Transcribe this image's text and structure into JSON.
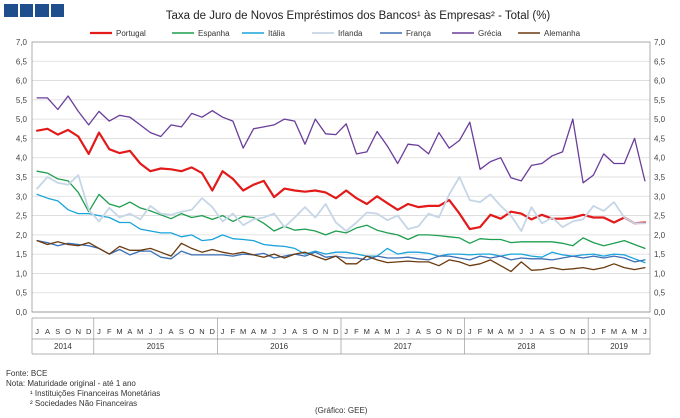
{
  "logo": {
    "alt": "logo-blocks"
  },
  "chart_data": {
    "type": "line",
    "title": "Taxa de Juro de Novos Empréstimos dos Bancos¹ às Empresas² - Total (%)",
    "ylim": [
      0,
      7
    ],
    "yticks": [
      "0,0",
      "0,5",
      "1,0",
      "1,5",
      "2,0",
      "2,5",
      "3,0",
      "3,5",
      "4,0",
      "4,5",
      "5,0",
      "5,5",
      "6,0",
      "6,5",
      "7,0"
    ],
    "months": [
      "J",
      "A",
      "S",
      "O",
      "N",
      "D",
      "J",
      "F",
      "M",
      "A",
      "M",
      "J",
      "J",
      "A",
      "S",
      "O",
      "N",
      "D",
      "J",
      "F",
      "M",
      "A",
      "M",
      "J",
      "J",
      "A",
      "S",
      "O",
      "N",
      "D",
      "J",
      "F",
      "M",
      "A",
      "M",
      "J",
      "J",
      "A",
      "S",
      "O",
      "N",
      "D",
      "J",
      "F",
      "M",
      "A",
      "M",
      "J",
      "J",
      "A",
      "S",
      "O",
      "N",
      "D",
      "J",
      "F",
      "M",
      "A",
      "M",
      "J"
    ],
    "years": [
      {
        "label": "2014",
        "start": 0,
        "end": 5
      },
      {
        "label": "2015",
        "start": 6,
        "end": 17
      },
      {
        "label": "2016",
        "start": 18,
        "end": 29
      },
      {
        "label": "2017",
        "start": 30,
        "end": 41
      },
      {
        "label": "2018",
        "start": 42,
        "end": 53
      },
      {
        "label": "2019",
        "start": 54,
        "end": 59
      }
    ],
    "series": [
      {
        "name": "Portugal",
        "color": "#e21a1a",
        "width": 2.2,
        "values": [
          4.7,
          4.75,
          4.6,
          4.72,
          4.55,
          4.1,
          4.65,
          4.22,
          4.12,
          4.18,
          3.85,
          3.65,
          3.72,
          3.7,
          3.65,
          3.75,
          3.6,
          3.15,
          3.65,
          3.45,
          3.15,
          3.3,
          3.4,
          2.98,
          3.2,
          3.15,
          3.12,
          3.15,
          3.1,
          2.95,
          3.15,
          2.95,
          2.8,
          3.0,
          2.82,
          2.65,
          2.8,
          2.72,
          2.75,
          2.75,
          2.9,
          2.55,
          2.15,
          2.2,
          2.52,
          2.42,
          2.6,
          2.55,
          2.4,
          2.52,
          2.42,
          2.42,
          2.45,
          2.52,
          2.45,
          2.45,
          2.32,
          2.45,
          2.3,
          2.32
        ]
      },
      {
        "name": "Espanha",
        "color": "#1e9e4e",
        "width": 1.3,
        "values": [
          3.65,
          3.6,
          3.45,
          3.4,
          3.1,
          2.6,
          3.05,
          2.8,
          2.72,
          2.85,
          2.7,
          2.62,
          2.52,
          2.42,
          2.55,
          2.45,
          2.5,
          2.4,
          2.5,
          2.35,
          2.48,
          2.45,
          2.3,
          2.1,
          2.22,
          2.12,
          2.15,
          2.1,
          2.0,
          2.1,
          2.05,
          2.18,
          2.25,
          2.12,
          2.05,
          2.0,
          1.88,
          2.0,
          2.0,
          1.98,
          1.95,
          1.92,
          1.78,
          1.9,
          1.88,
          1.88,
          1.8,
          1.82,
          1.82,
          1.82,
          1.82,
          1.78,
          1.72,
          1.92,
          1.8,
          1.72,
          1.78,
          1.85,
          1.75,
          1.65
        ]
      },
      {
        "name": "Itália",
        "color": "#1aa3dc",
        "width": 1.3,
        "values": [
          3.05,
          2.95,
          2.88,
          2.65,
          2.55,
          2.55,
          2.5,
          2.45,
          2.32,
          2.32,
          2.15,
          2.1,
          2.05,
          2.05,
          1.95,
          2.0,
          1.85,
          1.88,
          2.0,
          1.9,
          1.88,
          1.85,
          1.75,
          1.72,
          1.7,
          1.65,
          1.5,
          1.58,
          1.5,
          1.55,
          1.55,
          1.5,
          1.45,
          1.45,
          1.65,
          1.5,
          1.55,
          1.55,
          1.52,
          1.45,
          1.5,
          1.5,
          1.48,
          1.5,
          1.5,
          1.45,
          1.5,
          1.5,
          1.45,
          1.42,
          1.55,
          1.48,
          1.45,
          1.48,
          1.5,
          1.45,
          1.5,
          1.48,
          1.38,
          1.28
        ]
      },
      {
        "name": "Irlanda",
        "color": "#c6d6e6",
        "width": 1.8,
        "values": [
          3.2,
          3.5,
          3.35,
          3.3,
          3.55,
          2.65,
          2.35,
          2.7,
          2.45,
          2.55,
          2.4,
          2.75,
          2.55,
          2.52,
          2.6,
          2.65,
          2.95,
          2.72,
          2.35,
          2.55,
          2.25,
          2.4,
          2.45,
          2.55,
          2.2,
          2.45,
          2.72,
          2.45,
          2.8,
          2.32,
          2.1,
          2.32,
          2.58,
          2.55,
          2.38,
          2.5,
          2.15,
          2.22,
          2.55,
          2.45,
          3.05,
          3.5,
          2.9,
          2.85,
          3.05,
          2.75,
          2.5,
          2.1,
          2.72,
          2.3,
          2.45,
          2.2,
          2.35,
          2.4,
          2.75,
          2.62,
          2.85,
          2.45,
          2.3,
          2.3
        ]
      },
      {
        "name": "França",
        "color": "#3c6fb4",
        "width": 1.3,
        "values": [
          1.85,
          1.8,
          1.72,
          1.78,
          1.75,
          1.72,
          1.65,
          1.5,
          1.62,
          1.48,
          1.58,
          1.58,
          1.42,
          1.38,
          1.58,
          1.48,
          1.48,
          1.48,
          1.48,
          1.45,
          1.5,
          1.48,
          1.52,
          1.4,
          1.45,
          1.5,
          1.45,
          1.55,
          1.42,
          1.45,
          1.4,
          1.4,
          1.35,
          1.45,
          1.4,
          1.4,
          1.42,
          1.38,
          1.35,
          1.45,
          1.45,
          1.4,
          1.35,
          1.45,
          1.4,
          1.45,
          1.35,
          1.4,
          1.38,
          1.38,
          1.35,
          1.4,
          1.45,
          1.4,
          1.45,
          1.4,
          1.45,
          1.4,
          1.3,
          1.35
        ]
      },
      {
        "name": "Grécia",
        "color": "#6a3d9a",
        "width": 1.3,
        "values": [
          5.55,
          5.55,
          5.25,
          5.6,
          5.2,
          4.85,
          5.2,
          4.95,
          5.1,
          5.05,
          4.85,
          4.65,
          4.55,
          4.85,
          4.8,
          5.15,
          5.05,
          5.22,
          5.05,
          4.95,
          4.25,
          4.75,
          4.8,
          4.85,
          5.0,
          4.95,
          4.35,
          5.0,
          4.62,
          4.6,
          4.88,
          4.1,
          4.15,
          4.68,
          4.3,
          3.85,
          4.35,
          4.32,
          4.1,
          4.65,
          4.25,
          4.45,
          4.92,
          3.7,
          3.9,
          4.0,
          3.48,
          3.4,
          3.8,
          3.85,
          4.05,
          4.15,
          5.0,
          3.35,
          3.55,
          4.1,
          3.85,
          3.85,
          4.5,
          3.4
        ]
      },
      {
        "name": "Alemanha",
        "color": "#6b3b10",
        "width": 1.3,
        "values": [
          1.85,
          1.75,
          1.82,
          1.75,
          1.72,
          1.8,
          1.65,
          1.5,
          1.7,
          1.6,
          1.6,
          1.65,
          1.55,
          1.45,
          1.78,
          1.65,
          1.55,
          1.62,
          1.55,
          1.5,
          1.55,
          1.48,
          1.42,
          1.5,
          1.4,
          1.5,
          1.55,
          1.45,
          1.35,
          1.45,
          1.25,
          1.25,
          1.45,
          1.35,
          1.28,
          1.3,
          1.32,
          1.3,
          1.3,
          1.2,
          1.35,
          1.3,
          1.2,
          1.25,
          1.35,
          1.2,
          1.05,
          1.3,
          1.08,
          1.1,
          1.15,
          1.1,
          1.12,
          1.15,
          1.1,
          1.15,
          1.25,
          1.15,
          1.1,
          1.15
        ]
      }
    ]
  },
  "footer": {
    "source": "Fonte: BCE",
    "note": "Nota: Maturidade original - até 1 ano",
    "fn1": "¹ Instituições Financeiras Monetárias",
    "fn2": "² Sociedades Não Financeiras",
    "credit": "(Gráfico: GEE)"
  }
}
